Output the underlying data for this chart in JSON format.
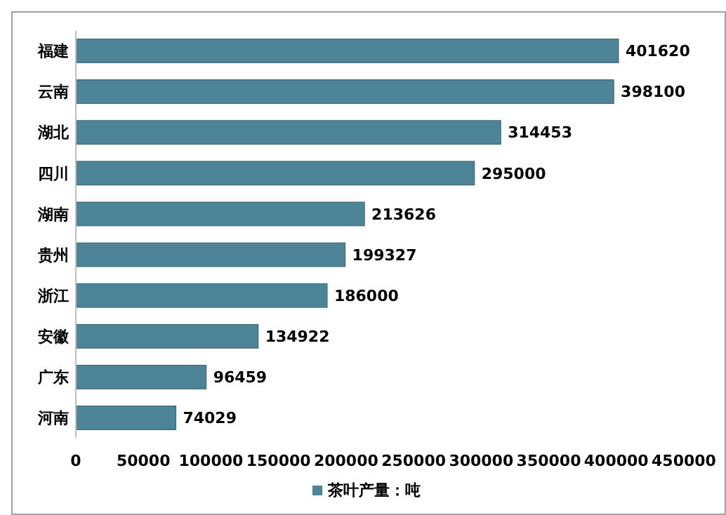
{
  "chart_data": {
    "type": "bar",
    "orientation": "horizontal",
    "categories": [
      "福建",
      "云南",
      "湖北",
      "四川",
      "湖南",
      "贵州",
      "浙江",
      "安徽",
      "广东",
      "河南"
    ],
    "series": [
      {
        "name": "茶叶产量：吨",
        "color": "#4e8497",
        "values": [
          401620,
          398100,
          314453,
          295000,
          213626,
          199327,
          186000,
          134922,
          96459,
          74029
        ]
      }
    ],
    "xlim": [
      0,
      450000
    ],
    "xticks": [
      0,
      50000,
      100000,
      150000,
      200000,
      250000,
      300000,
      350000,
      400000,
      450000
    ],
    "data_labels": true,
    "legend": "bottom",
    "grid": false
  }
}
